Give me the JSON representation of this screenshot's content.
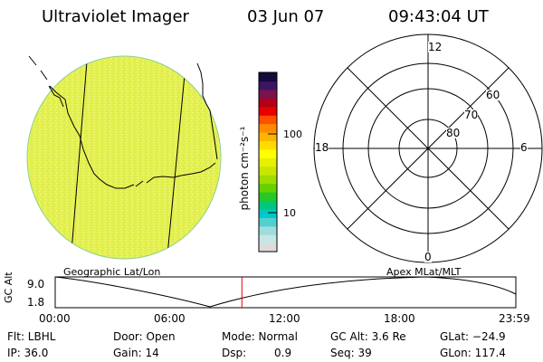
{
  "header": {
    "instrument": "Ultraviolet Imager",
    "date": "03 Jun 07",
    "time": "09:43:04 UT"
  },
  "colorbar": {
    "unit_label": "photon cm⁻²s⁻¹",
    "tick_100": "100",
    "tick_10": "10",
    "colors": [
      "#dcdcdc",
      "#c8e6e6",
      "#a0dcdc",
      "#50d0d0",
      "#00c8c8",
      "#00c878",
      "#28c828",
      "#64d200",
      "#a0dc00",
      "#c8e600",
      "#e6f000",
      "#ffff00",
      "#ffdc00",
      "#ffb400",
      "#ff8c00",
      "#ff5000",
      "#e60000",
      "#b40014",
      "#781450",
      "#3c1464",
      "#140a3c"
    ]
  },
  "image_panel": {
    "disk_color": "#e1f04b",
    "label": "Geographic Lat/Lon"
  },
  "polar_panel": {
    "label": "Apex  MLat/MLT",
    "mlt_12": "12",
    "mlt_18": "18",
    "mlt_6": "6",
    "mlt_0": "0",
    "lat_60": "60",
    "lat_70": "70",
    "lat_80": "80"
  },
  "altitude_plot": {
    "ylabel": "GC Alt",
    "ytick_top": "9.0",
    "ytick_bottom": "1.8",
    "xticks": [
      "00:00",
      "06:00",
      "12:00",
      "18:00",
      "23:59"
    ],
    "marker_color": "#e60000",
    "current_time_hours": 9.72
  },
  "footer": {
    "col1": [
      "Flt: LBHL",
      "IP: 36.0"
    ],
    "col2": [
      "Door: Open",
      "Gain: 14"
    ],
    "col3a": [
      "Mode: Normal",
      "Dsp:"
    ],
    "col3b": "0.9",
    "col4": [
      "GC Alt: 3.6 Re",
      "Seq: 39"
    ],
    "col5": [
      "GLat: −24.9",
      "GLon: 117.4"
    ]
  }
}
